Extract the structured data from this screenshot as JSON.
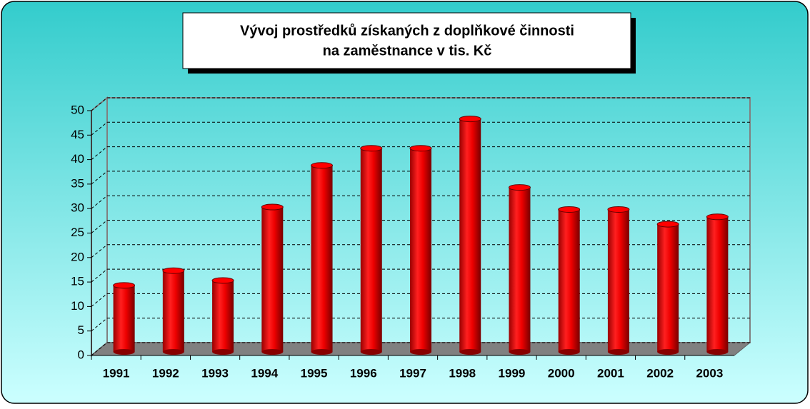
{
  "chart_data": {
    "type": "bar",
    "title": [
      "Vývoj prostředků získaných z doplňkové činnosti",
      "na zaměstnance v tis. Kč"
    ],
    "categories": [
      "1991",
      "1992",
      "1993",
      "1994",
      "1995",
      "1996",
      "1997",
      "1998",
      "1999",
      "2000",
      "2001",
      "2002",
      "2003"
    ],
    "values": [
      13,
      16,
      14,
      29,
      37.5,
      41,
      41,
      47,
      33,
      28.5,
      28.5,
      25.5,
      27
    ],
    "color": "#ff0000",
    "ylim": [
      0,
      50
    ],
    "yticks": [
      0,
      5,
      10,
      15,
      20,
      25,
      30,
      35,
      40,
      45,
      50
    ],
    "grid": true
  }
}
